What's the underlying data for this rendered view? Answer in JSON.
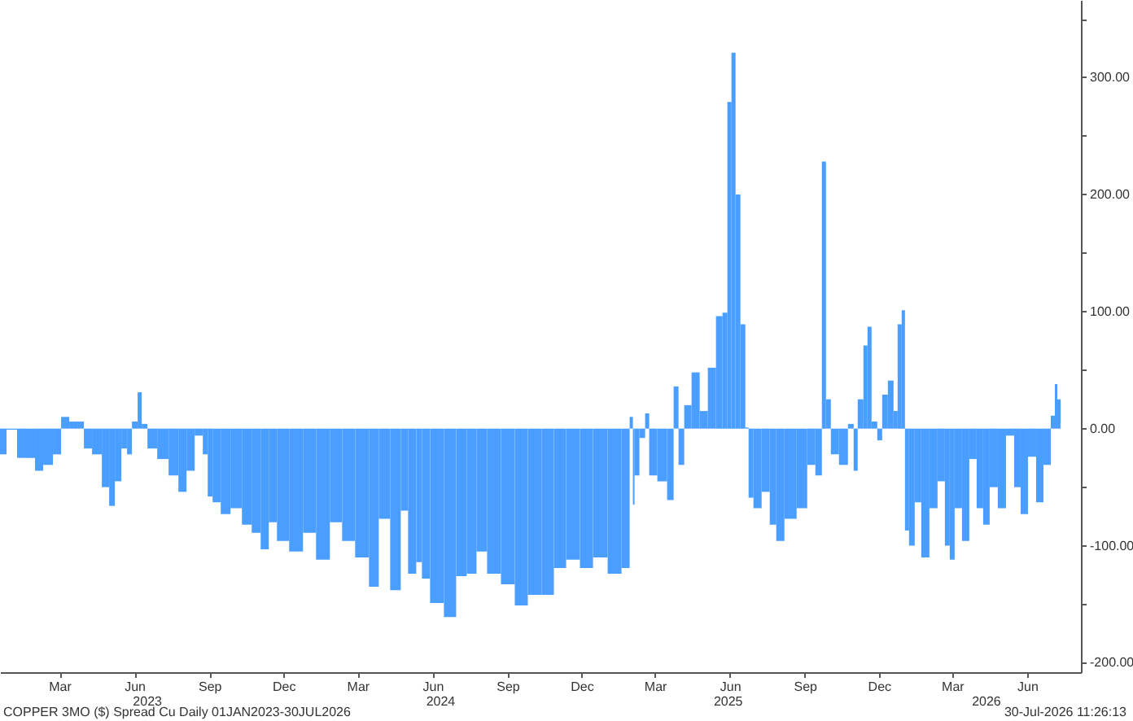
{
  "chart_data": {
    "type": "bar",
    "color": "#4a9eff",
    "grid": false,
    "x": [
      "2023-01-01",
      "2023-01-17",
      "2023-01-27",
      "2023-02-10",
      "2023-02-16",
      "2023-03-02",
      "2023-03-12",
      "2023-03-22",
      "2023-04-01",
      "2023-04-11",
      "2023-04-17",
      "2023-05-01",
      "2023-05-11",
      "2023-05-19",
      "2023-05-25",
      "2023-06-04",
      "2023-06-08",
      "2023-06-16",
      "2023-06-22",
      "2023-06-26",
      "2023-07-06",
      "2023-07-20",
      "2023-08-03",
      "2023-08-13",
      "2023-08-23",
      "2023-09-02",
      "2023-09-12",
      "2023-09-14",
      "2023-09-24",
      "2023-10-04",
      "2023-10-18",
      "2023-11-01",
      "2023-11-11",
      "2023-11-23",
      "2023-12-01",
      "2023-12-13",
      "2023-12-31",
      "2024-01-16",
      "2024-02-01",
      "2024-02-19",
      "2024-03-02",
      "2024-03-22",
      "2024-04-05",
      "2024-04-15",
      "2024-05-03",
      "2024-05-11",
      "2024-05-21",
      "2024-05-31",
      "2024-06-04",
      "2024-06-20",
      "2024-07-08",
      "2024-07-20",
      "2024-08-03",
      "2024-08-13",
      "2024-08-29",
      "2024-09-16",
      "2024-10-02",
      "2024-10-18",
      "2024-11-05",
      "2024-11-17",
      "2024-12-05",
      "2024-12-21",
      "2025-01-06",
      "2025-01-26",
      "2025-02-09",
      "2025-02-15",
      "2025-02-17",
      "2025-02-19",
      "2025-03-01",
      "2025-03-05",
      "2025-03-11",
      "2025-03-25",
      "2025-04-04",
      "2025-04-10",
      "2025-04-16",
      "2025-04-24",
      "2025-05-04",
      "2025-05-14",
      "2025-05-24",
      "2025-06-03",
      "2025-06-09",
      "2025-06-15",
      "2025-06-19",
      "2025-06-25",
      "2025-07-01",
      "2025-07-07",
      "2025-07-09",
      "2025-07-19",
      "2025-07-29",
      "2025-08-08",
      "2025-08-14",
      "2025-08-28",
      "2025-09-13",
      "2025-09-23",
      "2025-10-03",
      "2025-10-09",
      "2025-10-13",
      "2025-10-21",
      "2025-11-02",
      "2025-11-12",
      "2025-11-16",
      "2025-11-22",
      "2025-11-30",
      "2025-12-02",
      "2025-12-10",
      "2025-12-16",
      "2025-12-22",
      "2025-12-30",
      "2026-01-05",
      "2026-01-09",
      "2026-01-15",
      "2026-01-17",
      "2026-01-25",
      "2026-01-31",
      "2026-02-10",
      "2026-02-20",
      "2026-03-02",
      "2026-03-10",
      "2026-03-14",
      "2026-03-22",
      "2026-04-01",
      "2026-04-09",
      "2026-04-19",
      "2026-04-25",
      "2026-05-05",
      "2026-05-15",
      "2026-05-25",
      "2026-06-04",
      "2026-06-10",
      "2026-06-22",
      "2026-06-30",
      "2026-07-10",
      "2026-07-18",
      "2026-07-20",
      "2026-07-24"
    ],
    "values": [
      -22,
      -1,
      -25,
      -25,
      -36,
      -31,
      -22,
      10,
      6,
      6,
      -17,
      -22,
      -50,
      -66,
      -45,
      -17,
      -22,
      6,
      31,
      4,
      -17,
      -26,
      -40,
      -54,
      -36,
      -6,
      -22,
      -58,
      -63,
      -73,
      -68,
      -82,
      -89,
      -103,
      -80,
      -96,
      -105,
      -89,
      -112,
      -80,
      -96,
      -110,
      -135,
      -77,
      -138,
      -70,
      -124,
      -114,
      -128,
      -149,
      -161,
      -126,
      -124,
      -105,
      -124,
      -133,
      -151,
      -142,
      -142,
      -119,
      -112,
      -119,
      -110,
      -124,
      -119,
      10,
      -65,
      -40,
      -8,
      13,
      -40,
      -45,
      -61,
      36,
      -31,
      20,
      48,
      15,
      52,
      96,
      99,
      279,
      321,
      200,
      89,
      1,
      -59,
      -68,
      -54,
      -82,
      -96,
      -77,
      -68,
      -31,
      -40,
      228,
      25,
      -22,
      -31,
      4,
      -36,
      25,
      71,
      87,
      6,
      -10,
      29,
      41,
      15,
      89,
      101,
      -87,
      -100,
      -63,
      -110,
      -68,
      -45,
      -100,
      -112,
      -68,
      -96,
      -26,
      -68,
      -82,
      -50,
      -68,
      -6,
      -50,
      -73,
      -24,
      -63,
      -31,
      11,
      38,
      25
    ],
    "xlim": [
      "2023-01-01",
      "2026-08-20"
    ],
    "xticks": [
      {
        "value": "2023-03-15",
        "label": "Mar"
      },
      {
        "value": "2023-06-15",
        "label": "Jun"
      },
      {
        "value": "2023-09-15",
        "label": "Sep"
      },
      {
        "value": "2023-12-15",
        "label": "Dec"
      },
      {
        "value": "2024-03-15",
        "label": "Mar"
      },
      {
        "value": "2024-06-15",
        "label": "Jun"
      },
      {
        "value": "2024-09-15",
        "label": "Sep"
      },
      {
        "value": "2024-12-15",
        "label": "Dec"
      },
      {
        "value": "2025-03-15",
        "label": "Mar"
      },
      {
        "value": "2025-06-15",
        "label": "Jun"
      },
      {
        "value": "2025-09-15",
        "label": "Sep"
      },
      {
        "value": "2025-12-15",
        "label": "Dec"
      },
      {
        "value": "2026-03-15",
        "label": "Mar"
      },
      {
        "value": "2026-06-15",
        "label": "Jun"
      }
    ],
    "x2lim": [
      "2023-01-01",
      "2026-08-20"
    ],
    "x2ticks": [
      {
        "value": "2023-06-30",
        "label": "2023"
      },
      {
        "value": "2024-06-24",
        "label": "2024"
      },
      {
        "value": "2025-06-12",
        "label": "2025"
      },
      {
        "value": "2026-04-25",
        "label": "2026"
      }
    ],
    "ylim": [
      -208,
      366
    ],
    "yticks": [
      {
        "value": -200,
        "label": "-200.00"
      },
      {
        "value": -150,
        "label": null
      },
      {
        "value": -100,
        "label": "-100.00"
      },
      {
        "value": -50,
        "label": null
      },
      {
        "value": 0,
        "label": "0.00"
      },
      {
        "value": 50,
        "label": null
      },
      {
        "value": 100,
        "label": "100.00"
      },
      {
        "value": 150,
        "label": null
      },
      {
        "value": 200,
        "label": "200.00"
      },
      {
        "value": 250,
        "label": null
      },
      {
        "value": 300,
        "label": "300.00"
      },
      {
        "value": 350,
        "label": null
      }
    ],
    "annotations": [
      "COPPER 3MO ($) Spread Cu Daily 01JAN2023-30JUL2026",
      "30-Jul-2026 11:26:13"
    ]
  }
}
